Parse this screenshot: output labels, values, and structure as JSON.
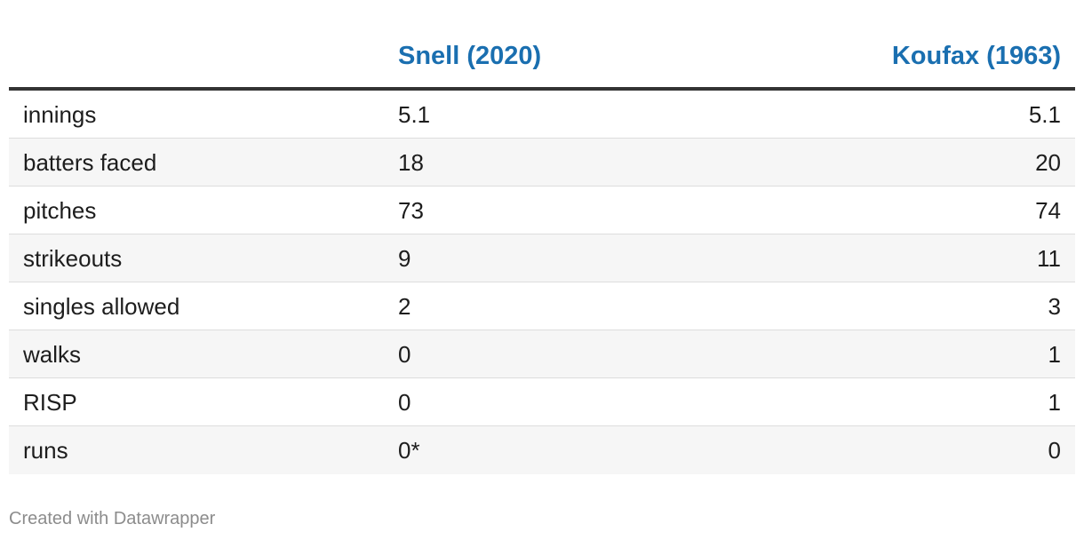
{
  "accent_color": "#1a6fb0",
  "chart_data": {
    "type": "table",
    "columns": [
      "",
      "Snell (2020)",
      "Koufax (1963)"
    ],
    "rows": [
      {
        "label": "innings",
        "snell": "5.1",
        "koufax": "5.1"
      },
      {
        "label": "batters faced",
        "snell": "18",
        "koufax": "20"
      },
      {
        "label": "pitches",
        "snell": "73",
        "koufax": "74"
      },
      {
        "label": "strikeouts",
        "snell": "9",
        "koufax": "11"
      },
      {
        "label": "singles allowed",
        "snell": "2",
        "koufax": "3"
      },
      {
        "label": "walks",
        "snell": "0",
        "koufax": "1"
      },
      {
        "label": "RISP",
        "snell": "0",
        "koufax": "1"
      },
      {
        "label": "runs",
        "snell": "0*",
        "koufax": "0"
      }
    ]
  },
  "footer": {
    "credit": "Created with Datawrapper"
  }
}
